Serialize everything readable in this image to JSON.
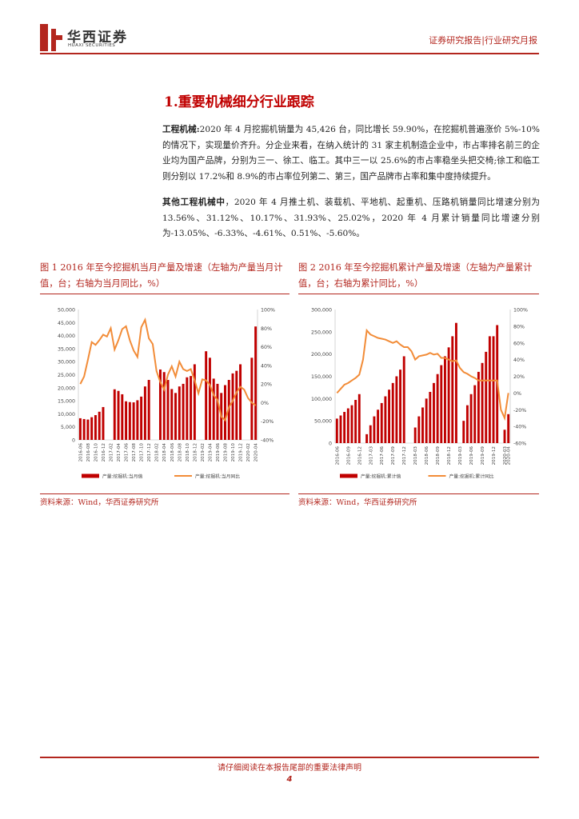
{
  "header": {
    "logo_cn": "华西证券",
    "logo_en": "HUAXI SECURITIES",
    "report_type": "证券研究报告|行业研究月报"
  },
  "section": {
    "title": "1.重要机械细分行业跟踪"
  },
  "paragraphs": [
    {
      "lead": "工程机械:",
      "text": "2020 年 4 月挖掘机销量为 45,426 台，同比增长 59.90%，在挖掘机普遍涨价 5%-10%的情况下，实现量价齐升。分企业来看，在纳入统计的 31 家主机制造企业中，市占率排名前三的企业均为国产品牌，分别为三一、徐工、临工。其中三一以 25.6%的市占率稳坐头把交椅;徐工和临工则分别以 17.2%和 8.9%的市占率位列第二、第三，国产品牌市占率和集中度持续提升。"
    },
    {
      "lead": "其他工程机械中",
      "text": "，2020 年 4 月推土机、装载机、平地机、起重机、压路机销量同比增速分别为 13.56%、31.12%、10.17%、31.93%、25.02%，2020 年 4 月累计销量同比增速分别为-13.05%、-6.33%、-4.61%、0.51%、-5.60%。"
    }
  ],
  "figures": [
    {
      "title": "图 1   2016 年至今挖掘机当月产量及增速（左轴为产量当月计值，台；右轴为当月同比，%）",
      "source": "资料来源：Wind，华西证券研究所"
    },
    {
      "title": "图 2   2016 年至今挖掘机累计产量及增速（左轴为产量累计值，台；右轴为累计同比，%）",
      "source": "资料来源：Wind，华西证券研究所"
    }
  ],
  "chart_data": [
    {
      "type": "bar",
      "categories": [
        "2016-06",
        "2016-07",
        "2016-08",
        "2016-09",
        "2016-10",
        "2016-11",
        "2016-12",
        "2017-01",
        "2017-02",
        "2017-03",
        "2017-04",
        "2017-05",
        "2017-06",
        "2017-07",
        "2017-08",
        "2017-09",
        "2017-10",
        "2017-11",
        "2017-12",
        "2018-01",
        "2018-02",
        "2018-03",
        "2018-04",
        "2018-05",
        "2018-06",
        "2018-07",
        "2018-08",
        "2018-09",
        "2018-10",
        "2018-11",
        "2018-12",
        "2019-01",
        "2019-02",
        "2019-03",
        "2019-04",
        "2019-05",
        "2019-06",
        "2019-07",
        "2019-08",
        "2019-09",
        "2019-10",
        "2019-11",
        "2019-12",
        "2020-01",
        "2020-02",
        "2020-03",
        "2020-04"
      ],
      "tick_labels": [
        "2016-06",
        "2016-08",
        "2016-10",
        "2016-12",
        "2017-02",
        "2017-04",
        "2017-06",
        "2017-08",
        "2017-10",
        "2017-12",
        "2018-02",
        "2018-04",
        "2018-06",
        "2018-08",
        "2018-10",
        "2018-12",
        "2019-02",
        "2019-04",
        "2019-06",
        "2019-08",
        "2019-10",
        "2019-12",
        "2020-02",
        "2020-04"
      ],
      "series": [
        {
          "name": "产量:挖掘机:当月值",
          "axis": "left",
          "kind": "bar",
          "values": [
            8300,
            8000,
            7800,
            8700,
            9500,
            10800,
            12600,
            null,
            null,
            19400,
            18800,
            17500,
            14800,
            14500,
            14400,
            15200,
            16600,
            20500,
            23000,
            null,
            null,
            27000,
            26000,
            23000,
            19500,
            18000,
            20500,
            21500,
            24000,
            24500,
            29000,
            null,
            null,
            34000,
            31500,
            23500,
            21500,
            18000,
            21000,
            23000,
            25500,
            26500,
            29000,
            null,
            null,
            31500,
            43500
          ]
        },
        {
          "name": "产量:挖掘机:当月同比",
          "axis": "right",
          "kind": "line",
          "values": [
            20,
            28,
            46,
            65,
            62,
            67,
            73,
            71,
            80,
            57,
            67,
            79,
            82,
            67,
            56,
            49,
            81,
            89,
            69,
            63,
            34,
            22,
            14,
            30,
            39,
            28,
            44,
            36,
            34,
            36,
            24,
            10,
            25,
            24,
            19,
            8,
            3,
            -15,
            -19,
            -5,
            2,
            11,
            17,
            14,
            5,
            0,
            -3
          ]
        }
      ],
      "ylim_left": [
        0,
        50000
      ],
      "ylim_right": [
        -40,
        100
      ],
      "left_ticks": [
        "0",
        "5,000",
        "10,000",
        "15,000",
        "20,000",
        "25,000",
        "30,000",
        "35,000",
        "40,000",
        "45,000",
        "50,000"
      ],
      "right_ticks": [
        "-40%",
        "-20%",
        "0%",
        "20%",
        "40%",
        "60%",
        "80%",
        "100%"
      ],
      "legend": [
        "产量:挖掘机:当月值",
        "产量:挖掘机:当月同比"
      ],
      "legend_position": "bottom"
    },
    {
      "type": "bar",
      "categories": [
        "2016-06",
        "2016-07",
        "2016-08",
        "2016-09",
        "2016-10",
        "2016-11",
        "2016-12",
        "2017-01",
        "2017-02",
        "2017-03",
        "2017-04",
        "2017-05",
        "2017-06",
        "2017-07",
        "2017-08",
        "2017-09",
        "2017-10",
        "2017-11",
        "2017-12",
        "2018-01",
        "2018-02",
        "2018-03",
        "2018-04",
        "2018-05",
        "2018-06",
        "2018-07",
        "2018-08",
        "2018-09",
        "2018-10",
        "2018-11",
        "2018-12",
        "2019-01",
        "2019-02",
        "2019-03",
        "2019-04",
        "2019-05",
        "2019-06",
        "2019-07",
        "2019-08",
        "2019-09",
        "2019-10",
        "2019-11",
        "2019-12",
        "2020-01",
        "2020-02",
        "2020-03",
        "2020-04"
      ],
      "tick_labels": [
        "2016-06",
        "2016-09",
        "2016-12",
        "2017-03",
        "2017-06",
        "2017-09",
        "2017-12",
        "2018-03",
        "2018-06",
        "2018-09",
        "2018-12",
        "2019-03",
        "2019-06",
        "2019-09",
        "2019-12",
        "2020-03",
        "2020-04"
      ],
      "series": [
        {
          "name": "产量:挖掘机:累计值",
          "axis": "left",
          "kind": "bar",
          "values": [
            55000,
            62000,
            70000,
            78000,
            85000,
            97000,
            110000,
            null,
            20000,
            40000,
            60000,
            75000,
            90000,
            105000,
            120000,
            135000,
            150000,
            165000,
            195000,
            null,
            null,
            35000,
            60000,
            80000,
            100000,
            115000,
            135000,
            155000,
            175000,
            195000,
            215000,
            240000,
            270000,
            null,
            50000,
            85000,
            110000,
            130000,
            160000,
            180000,
            205000,
            240000,
            240000,
            265000,
            null,
            30000,
            65000
          ]
        },
        {
          "name": "产量:挖掘机:累计同比",
          "axis": "right",
          "kind": "line",
          "values": [
            0,
            5,
            10,
            12,
            15,
            18,
            22,
            40,
            75,
            70,
            68,
            66,
            65,
            64,
            62,
            60,
            62,
            58,
            55,
            55,
            50,
            40,
            44,
            45,
            46,
            48,
            46,
            47,
            42,
            42,
            40,
            38,
            39,
            30,
            25,
            23,
            20,
            18,
            15,
            15,
            15,
            15,
            15,
            15,
            -20,
            -30,
            0
          ]
        }
      ],
      "ylim_left": [
        0,
        300000
      ],
      "ylim_right": [
        -60,
        100
      ],
      "left_ticks": [
        "0",
        "50,000",
        "100,000",
        "150,000",
        "200,000",
        "250,000",
        "300,000"
      ],
      "right_ticks": [
        "-60%",
        "-40%",
        "-20%",
        "0%",
        "20%",
        "40%",
        "60%",
        "80%",
        "100%"
      ],
      "legend": [
        "产量:挖掘机:累计值",
        "产量:挖掘机:累计同比"
      ],
      "legend_position": "bottom"
    }
  ],
  "colors": {
    "bar": "#c00000",
    "line": "#f28c38",
    "accent": "#b3261e"
  },
  "footer": {
    "note": "请仔细阅读在本报告尾部的重要法律声明",
    "page": "4"
  }
}
